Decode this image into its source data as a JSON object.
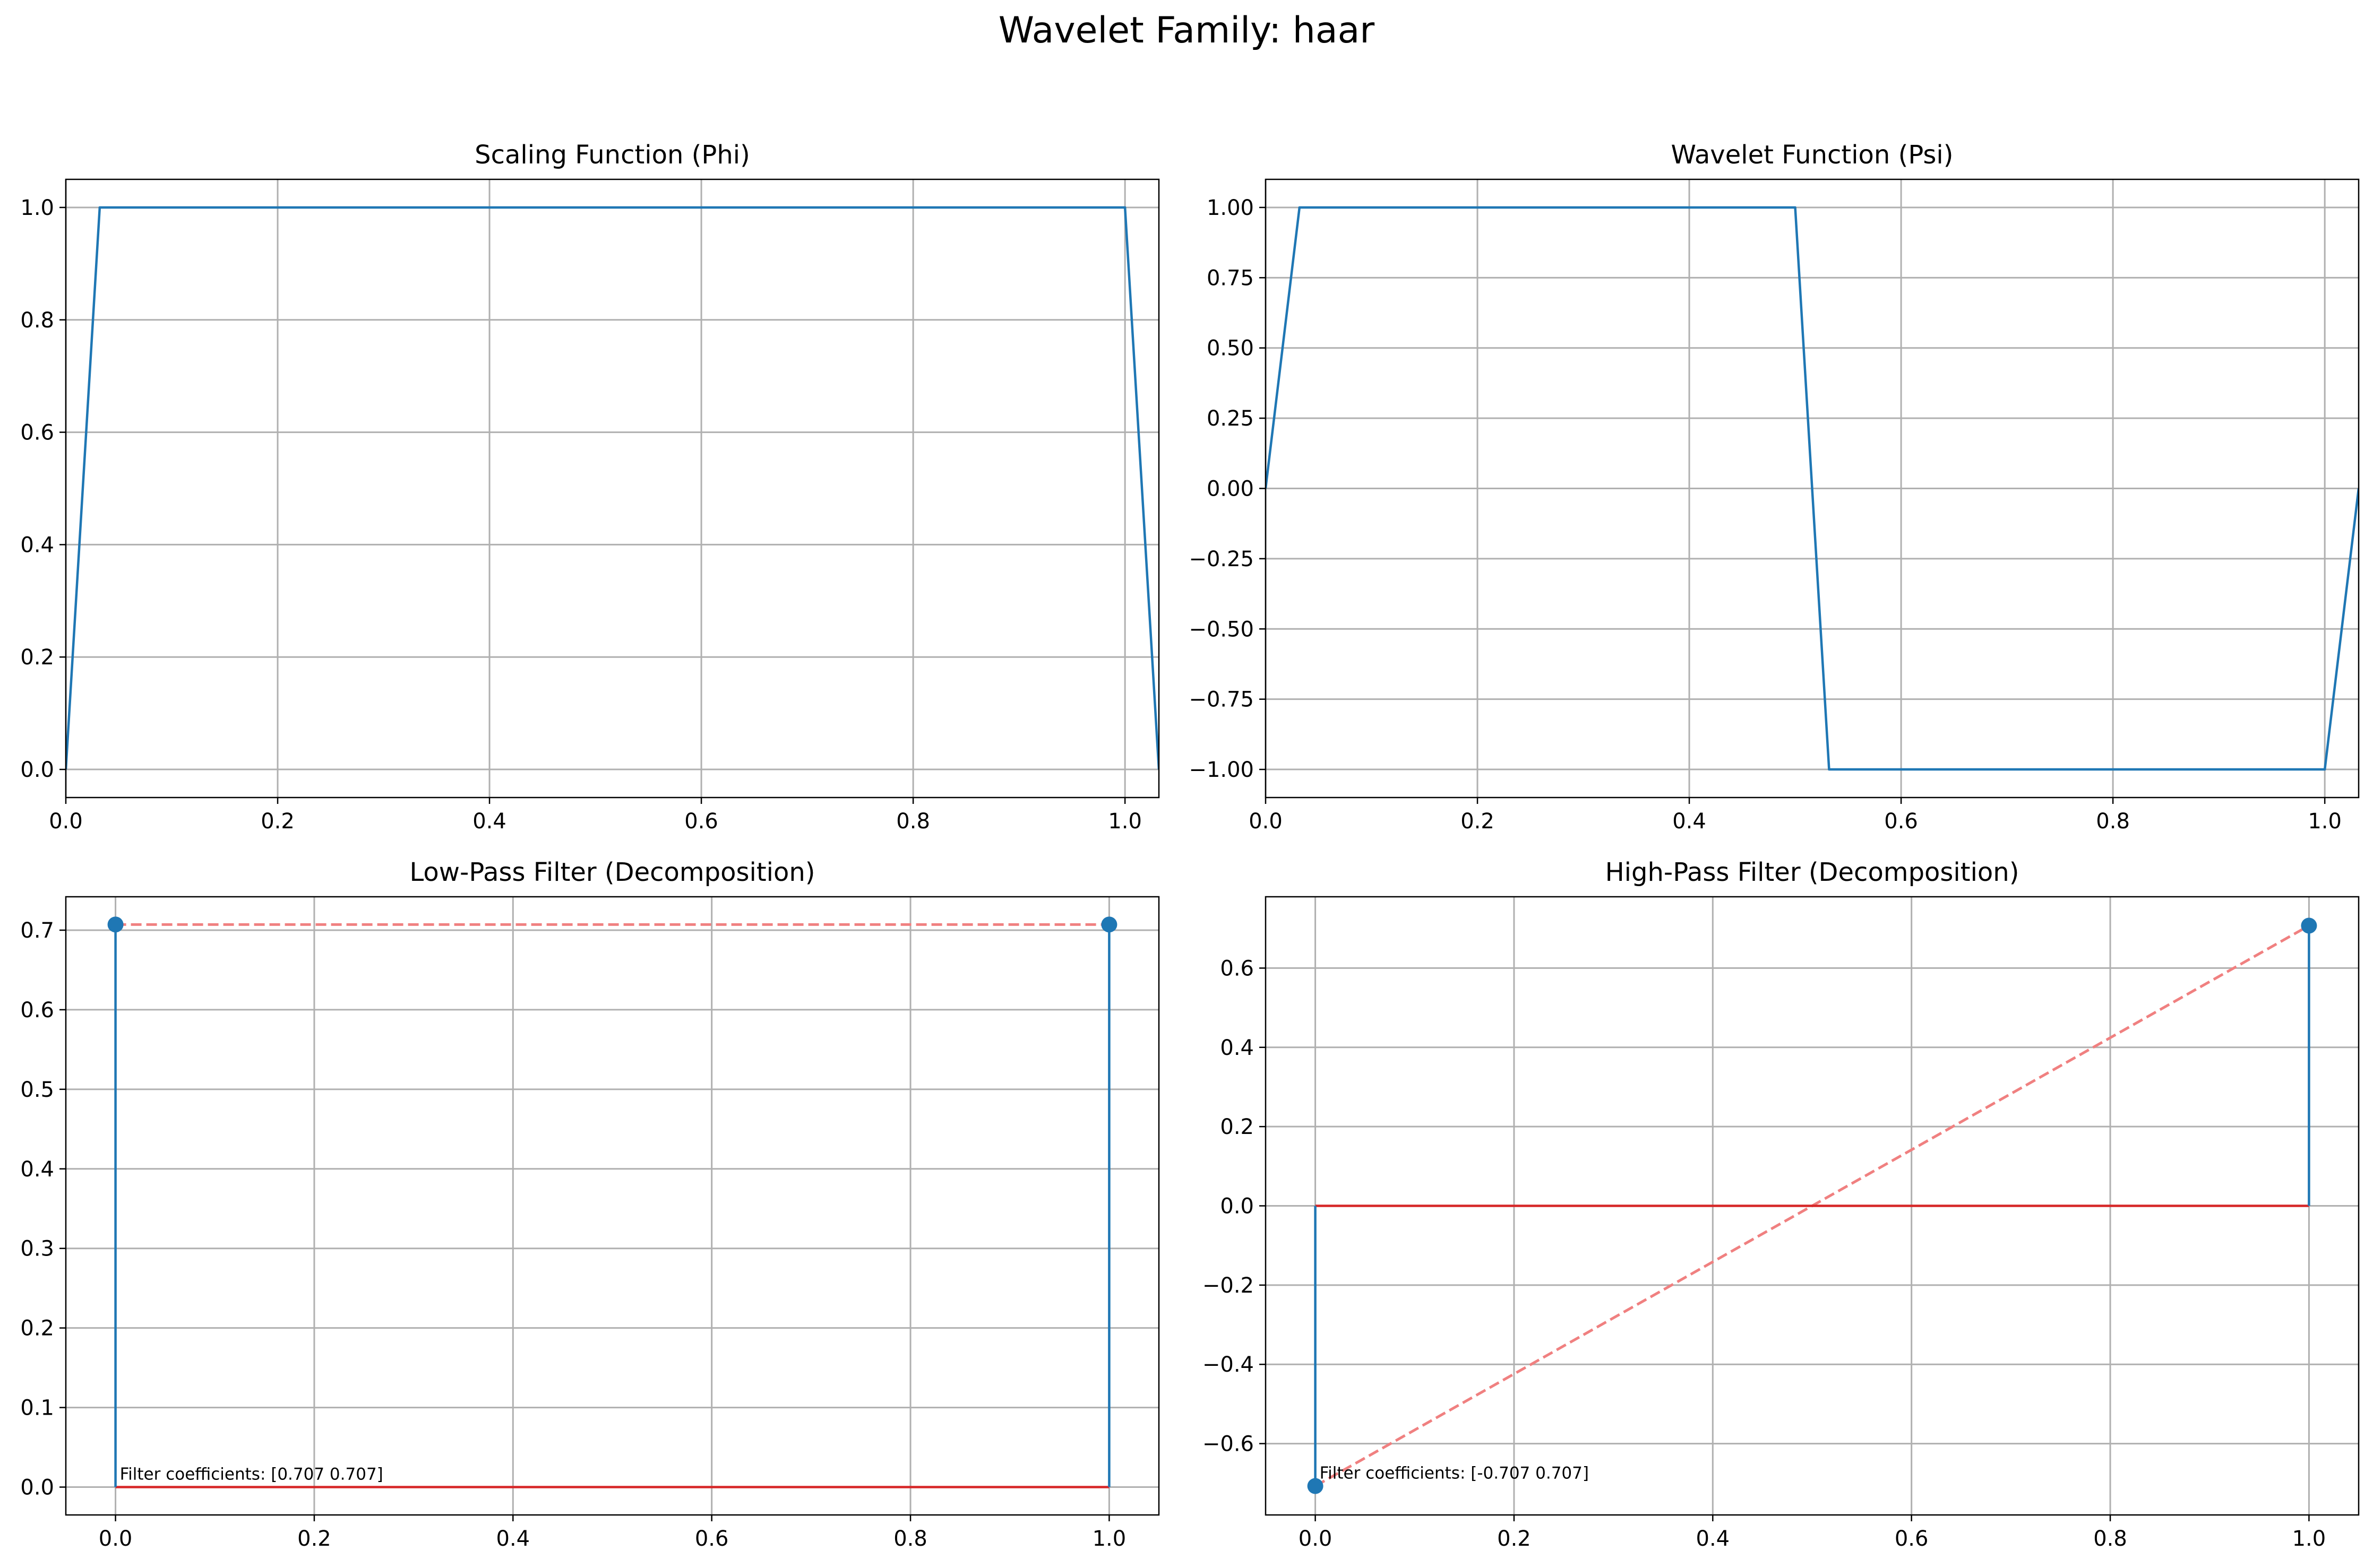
{
  "figure": {
    "title": "Wavelet Family: haar"
  },
  "colors": {
    "line": "#1f77b4",
    "baseline": "#d62728",
    "dashed": "#f08080",
    "grid": "#b0b0b0"
  },
  "chart_data": [
    {
      "type": "line",
      "title": "Scaling Function (Phi)",
      "xlabel": "",
      "ylabel": "",
      "xlim": [
        0,
        1.032
      ],
      "ylim": [
        -0.05,
        1.05
      ],
      "xticks": [
        0.0,
        0.2,
        0.4,
        0.6,
        0.8,
        1.0
      ],
      "xtick_labels": [
        "0.0",
        "0.2",
        "0.4",
        "0.6",
        "0.8",
        "1.0"
      ],
      "yticks": [
        0.0,
        0.2,
        0.4,
        0.6,
        0.8,
        1.0
      ],
      "ytick_labels": [
        "0.0",
        "0.2",
        "0.4",
        "0.6",
        "0.8",
        "1.0"
      ],
      "grid": true,
      "series": [
        {
          "x": [
            0.0,
            0.032,
            1.0,
            1.032
          ],
          "y": [
            0.0,
            1.0,
            1.0,
            0.0
          ]
        }
      ]
    },
    {
      "type": "line",
      "title": "Wavelet Function (Psi)",
      "xlabel": "",
      "ylabel": "",
      "xlim": [
        0,
        1.032
      ],
      "ylim": [
        -1.1,
        1.1
      ],
      "xticks": [
        0.0,
        0.2,
        0.4,
        0.6,
        0.8,
        1.0
      ],
      "xtick_labels": [
        "0.0",
        "0.2",
        "0.4",
        "0.6",
        "0.8",
        "1.0"
      ],
      "yticks": [
        -1.0,
        -0.75,
        -0.5,
        -0.25,
        0.0,
        0.25,
        0.5,
        0.75,
        1.0
      ],
      "ytick_labels": [
        "−1.00",
        "−0.75",
        "−0.50",
        "−0.25",
        "0.00",
        "0.25",
        "0.50",
        "0.75",
        "1.00"
      ],
      "grid": true,
      "series": [
        {
          "x": [
            0.0,
            0.032,
            0.5,
            0.532,
            1.0,
            1.032
          ],
          "y": [
            0.0,
            1.0,
            1.0,
            -1.0,
            -1.0,
            0.0
          ]
        }
      ]
    },
    {
      "type": "stem",
      "title": "Low-Pass Filter (Decomposition)",
      "xlabel": "",
      "ylabel": "",
      "xlim": [
        -0.05,
        1.05
      ],
      "ylim": [
        -0.035,
        0.742
      ],
      "xticks": [
        0.0,
        0.2,
        0.4,
        0.6,
        0.8,
        1.0
      ],
      "xtick_labels": [
        "0.0",
        "0.2",
        "0.4",
        "0.6",
        "0.8",
        "1.0"
      ],
      "yticks": [
        0.0,
        0.1,
        0.2,
        0.3,
        0.4,
        0.5,
        0.6,
        0.7
      ],
      "ytick_labels": [
        "0.0",
        "0.1",
        "0.2",
        "0.3",
        "0.4",
        "0.5",
        "0.6",
        "0.7"
      ],
      "grid": true,
      "stems": {
        "x": [
          0,
          1
        ],
        "y": [
          0.7071,
          0.7071
        ]
      },
      "dashed_line": {
        "x": [
          0,
          1
        ],
        "y": [
          0.7071,
          0.7071
        ]
      },
      "annotation": {
        "text": "Filter coefficients: [0.707 0.707]",
        "x": 0.0,
        "y": 0.0
      }
    },
    {
      "type": "stem",
      "title": "High-Pass Filter (Decomposition)",
      "xlabel": "",
      "ylabel": "",
      "xlim": [
        -0.05,
        1.05
      ],
      "ylim": [
        -0.78,
        0.78
      ],
      "xticks": [
        0.0,
        0.2,
        0.4,
        0.6,
        0.8,
        1.0
      ],
      "xtick_labels": [
        "0.0",
        "0.2",
        "0.4",
        "0.6",
        "0.8",
        "1.0"
      ],
      "yticks": [
        -0.6,
        -0.4,
        -0.2,
        0.0,
        0.2,
        0.4,
        0.6
      ],
      "ytick_labels": [
        "−0.6",
        "−0.4",
        "−0.2",
        "0.0",
        "0.2",
        "0.4",
        "0.6"
      ],
      "grid": true,
      "stems": {
        "x": [
          0,
          1
        ],
        "y": [
          -0.7071,
          0.7071
        ]
      },
      "dashed_line": {
        "x": [
          0,
          1
        ],
        "y": [
          -0.7071,
          0.7071
        ]
      },
      "annotation": {
        "text": "Filter coefficients: [-0.707  0.707]",
        "x": 0.0,
        "y": -0.7071
      }
    }
  ]
}
